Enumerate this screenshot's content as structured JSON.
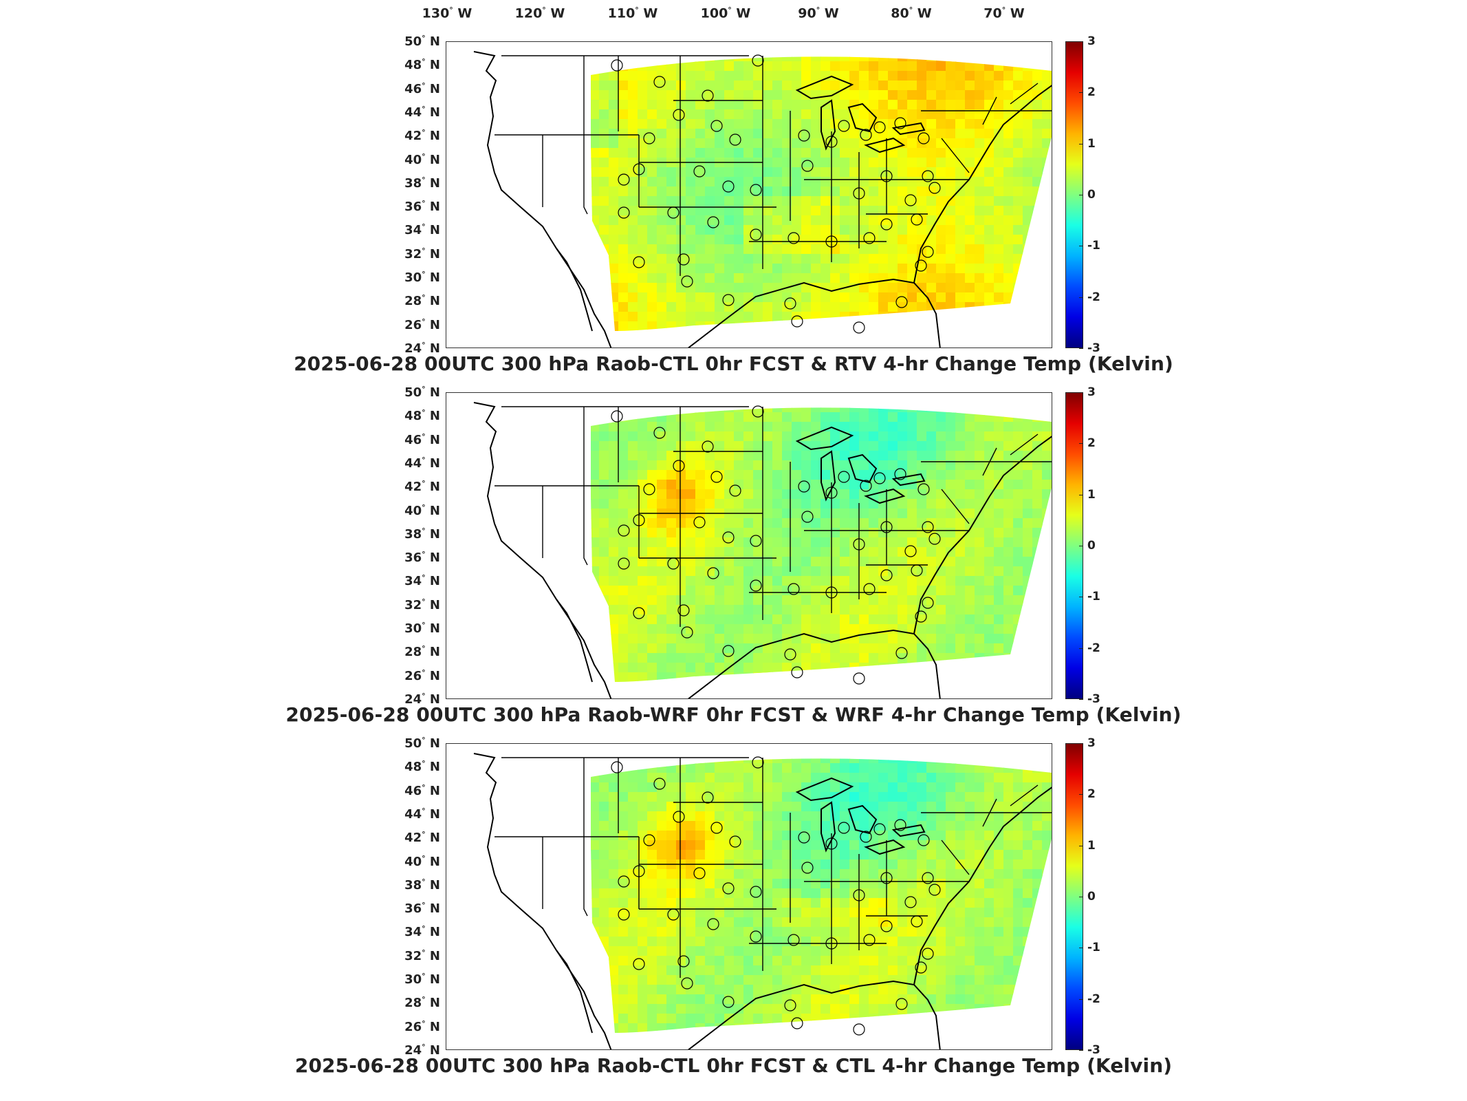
{
  "lon_labels": [
    {
      "deg": "130",
      "hem": "W"
    },
    {
      "deg": "120",
      "hem": "W"
    },
    {
      "deg": "110",
      "hem": "W"
    },
    {
      "deg": "100",
      "hem": "W"
    },
    {
      "deg": "90",
      "hem": "W"
    },
    {
      "deg": "80",
      "hem": "W"
    },
    {
      "deg": "70",
      "hem": "W"
    }
  ],
  "lat_labels": [
    {
      "deg": "50",
      "hem": "N"
    },
    {
      "deg": "48",
      "hem": "N"
    },
    {
      "deg": "46",
      "hem": "N"
    },
    {
      "deg": "44",
      "hem": "N"
    },
    {
      "deg": "42",
      "hem": "N"
    },
    {
      "deg": "40",
      "hem": "N"
    },
    {
      "deg": "38",
      "hem": "N"
    },
    {
      "deg": "36",
      "hem": "N"
    },
    {
      "deg": "34",
      "hem": "N"
    },
    {
      "deg": "32",
      "hem": "N"
    },
    {
      "deg": "30",
      "hem": "N"
    },
    {
      "deg": "28",
      "hem": "N"
    },
    {
      "deg": "26",
      "hem": "N"
    },
    {
      "deg": "24",
      "hem": "N"
    }
  ],
  "colorbar": {
    "ticks": [
      "3",
      "2",
      "1",
      "0",
      "-1",
      "-2",
      "-3"
    ],
    "range": [
      -3,
      3
    ],
    "colormap": "jet"
  },
  "panels": [
    {
      "title": "2025-06-28 00UTC 300 hPa Raob-CTL 0hr FCST & RTV 4-hr Change Temp (Kelvin)"
    },
    {
      "title": "2025-06-28 00UTC 300 hPa Raob-WRF 0hr FCST & WRF 4-hr Change Temp (Kelvin)"
    },
    {
      "title": "2025-06-28 00UTC 300 hPa Raob-CTL 0hr FCST & CTL 4-hr Change Temp (Kelvin)"
    }
  ],
  "colors": {
    "frame": "#333333",
    "coast": "#000000",
    "jet_low": "#00007f",
    "jet_high": "#7f0000"
  }
}
